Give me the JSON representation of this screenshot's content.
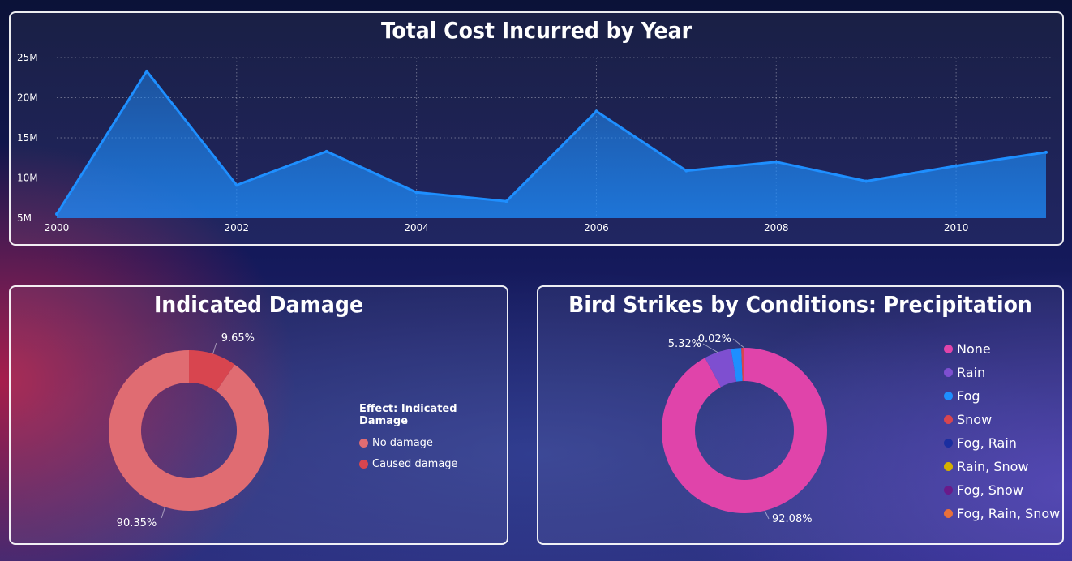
{
  "chart_data": [
    {
      "type": "area",
      "title": "Total Cost Incurred by Year",
      "x": [
        2000,
        2001,
        2002,
        2003,
        2004,
        2005,
        2006,
        2007,
        2008,
        2009,
        2010,
        2011
      ],
      "values": [
        5.5,
        23.3,
        9.1,
        13.3,
        8.2,
        7.1,
        18.3,
        10.9,
        12.0,
        9.6,
        11.5,
        13.2
      ],
      "value_unit": "M",
      "ylim": [
        5,
        25
      ],
      "y_ticks": [
        "5M",
        "10M",
        "15M",
        "20M",
        "25M"
      ],
      "x_ticks": [
        "2000",
        "2002",
        "2004",
        "2006",
        "2008",
        "2010"
      ],
      "grid": true,
      "color": "#1e8fff"
    },
    {
      "type": "pie",
      "title": "Indicated Damage",
      "legend_title": "Effect: Indicated Damage",
      "legend_position": "right",
      "labels": [
        "No damage",
        "Caused damage"
      ],
      "values": [
        90.35,
        9.65
      ],
      "value_labels": [
        "90.35%",
        "9.65%"
      ],
      "colors": [
        "#e06c72",
        "#d8454f"
      ]
    },
    {
      "type": "pie",
      "title": "Bird Strikes by Conditions: Precipitation",
      "legend_position": "right",
      "labels": [
        "None",
        "Rain",
        "Fog",
        "Snow",
        "Fog, Rain",
        "Rain, Snow",
        "Fog, Snow",
        "Fog, Rain, Snow"
      ],
      "values": [
        92.08,
        5.32,
        2.0,
        0.5,
        0.05,
        0.02,
        0.02,
        0.01
      ],
      "value_labels": [
        "92.08%",
        "5.32%",
        "",
        "",
        "",
        "0.02%",
        "",
        ""
      ],
      "colors": [
        "#e044aa",
        "#7e4fd0",
        "#1e8fff",
        "#d8454f",
        "#1a2ea0",
        "#d4b000",
        "#6a1a8a",
        "#e8703a"
      ]
    }
  ]
}
